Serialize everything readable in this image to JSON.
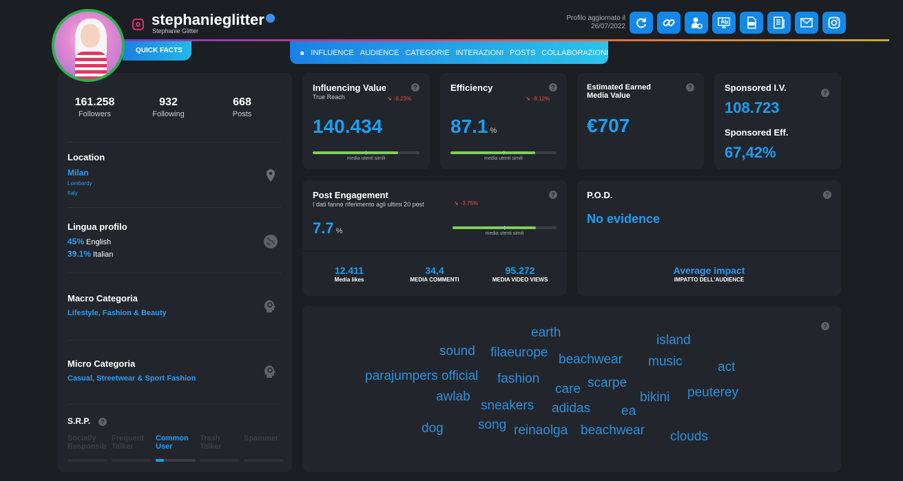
{
  "profile": {
    "username": "stephanieglitter",
    "display_name": "Stephanie Glitter",
    "updated_line1": "Profilo aggiornato il",
    "updated_line2": "26/07/2022",
    "quick_facts": "QUICK FACTS"
  },
  "toolbar": [
    "refresh-icon",
    "link-icon",
    "user-settings-icon",
    "ab-test-icon",
    "pdf-icon",
    "report-icon",
    "mail-icon",
    "instagram-icon"
  ],
  "nav": {
    "tabs": [
      "INFLUENCE",
      "AUDIENCE",
      "CATEGORIE",
      "INTERAZIONI",
      "POSTS",
      "COLLABORAZIONI"
    ]
  },
  "stats": [
    {
      "value": "161.258",
      "label": "Followers"
    },
    {
      "value": "932",
      "label": "Following"
    },
    {
      "value": "668",
      "label": "Posts"
    }
  ],
  "location": {
    "title": "Location",
    "city": "Milan",
    "region": "Lombardy",
    "country": "Italy"
  },
  "language": {
    "title": "Lingua profilo",
    "rows": [
      {
        "pct": "45%",
        "name": "English"
      },
      {
        "pct": "39.1%",
        "name": "Italian"
      }
    ]
  },
  "macro": {
    "title": "Macro Categoria",
    "value": "Lifestyle, Fashion & Beauty"
  },
  "micro": {
    "title": "Micro Categoria",
    "value": "Casual, Streetwear & Sport Fashion"
  },
  "srp": {
    "title": "S.R.P.",
    "levels": [
      {
        "line1": "Socially",
        "line2": "Responsib"
      },
      {
        "line1": "Frequent",
        "line2": "Talker"
      },
      {
        "line1": "Common",
        "line2": "User"
      },
      {
        "line1": "Trash",
        "line2": "Talker"
      },
      {
        "line1": "Spammer",
        "line2": ""
      }
    ],
    "active_index": 2,
    "active_fill": 0.2
  },
  "influencing": {
    "title": "Influencing Value",
    "subtitle": "True Reach",
    "delta": "-8.23%",
    "value": "140.434",
    "bar_fill": 0.8,
    "bar_label": "media utenti simili"
  },
  "efficiency": {
    "title": "Efficiency",
    "delta": "-8.12%",
    "value": "87.1",
    "unit": "%",
    "bar_fill": 0.8,
    "bar_label": "media utenti simili"
  },
  "emv": {
    "title_line1": "Estimated Earned",
    "title_line2": "Media Value",
    "value": "€707"
  },
  "sponsored": {
    "iv_title": "Sponsored I.V.",
    "iv_value": "108.723",
    "eff_title": "Sponsored Eff.",
    "eff_value": "67,42%"
  },
  "post_engagement": {
    "title": "Post Engagement",
    "subtitle": "I dati fanno riferimento agli ultimi 20 post",
    "delta": "-3.75%",
    "value": "7.7",
    "unit": "%",
    "bar_fill": 0.8,
    "bar_label": "media utenti simili",
    "metrics": [
      {
        "value": "12.411",
        "label": "Media likes"
      },
      {
        "value": "34,4",
        "label": "MEDIA COMMENTI"
      },
      {
        "value": "95.272",
        "label": "MEDIA VIDEO VIEWS"
      }
    ]
  },
  "pod": {
    "title": "P.O.D.",
    "value": "No evidence",
    "impact_title": "Average impact",
    "impact_sub": "IMPATTO DELL'AUDIENCE"
  },
  "wordcloud": [
    "earth",
    "island",
    "sound",
    "filaeurope",
    "beachwear",
    "music",
    "act",
    "parajumpers official",
    "fashion",
    "care",
    "scarpe",
    "awlab",
    "sneakers",
    "adidas",
    "bikini",
    "peuterey",
    "ea",
    "dog",
    "song",
    "reinaolga",
    "beachwear",
    "clouds"
  ],
  "help_glyph": "?"
}
